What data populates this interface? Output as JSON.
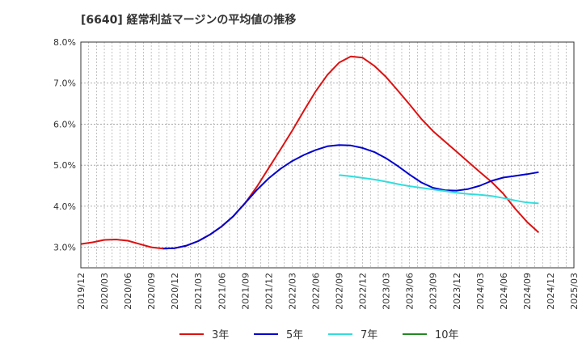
{
  "chart_data": {
    "type": "line",
    "title": "[6640]  経常利益マージンの平均値の推移",
    "xlabel": "",
    "ylabel": "",
    "ylim": [
      2.5,
      8.0
    ],
    "y_ticks": [
      "3.0%",
      "4.0%",
      "5.0%",
      "6.0%",
      "7.0%",
      "8.0%"
    ],
    "y_tick_values": [
      3.0,
      4.0,
      5.0,
      6.0,
      7.0,
      8.0
    ],
    "x_ticks": [
      "2019/12",
      "2020/03",
      "2020/06",
      "2020/09",
      "2020/12",
      "2021/03",
      "2021/06",
      "2021/09",
      "2021/12",
      "2022/03",
      "2022/06",
      "2022/09",
      "2022/12",
      "2023/03",
      "2023/06",
      "2023/09",
      "2023/12",
      "2024/03",
      "2024/06",
      "2024/09",
      "2024/12",
      "2025/03"
    ],
    "grid": true,
    "legend_position": "bottom",
    "series": [
      {
        "name": "3年",
        "color": "#dd1111",
        "values": [
          3.08,
          3.12,
          3.18,
          3.19,
          3.16,
          3.08,
          3.0,
          2.97,
          2.98,
          3.04,
          3.15,
          3.31,
          3.51,
          3.76,
          4.08,
          4.48,
          4.93,
          5.38,
          5.84,
          6.33,
          6.8,
          7.2,
          7.5,
          7.65,
          7.62,
          7.42,
          7.15,
          6.82,
          6.48,
          6.13,
          5.83,
          5.58,
          5.33,
          5.08,
          4.83,
          4.59,
          4.3,
          3.94,
          3.62,
          3.36
        ]
      },
      {
        "name": "5年",
        "color": "#0000cc",
        "values": [
          null,
          null,
          null,
          null,
          null,
          null,
          null,
          2.97,
          2.98,
          3.04,
          3.15,
          3.31,
          3.51,
          3.76,
          4.08,
          4.4,
          4.68,
          4.91,
          5.1,
          5.25,
          5.37,
          5.46,
          5.49,
          5.48,
          5.42,
          5.32,
          5.17,
          4.98,
          4.77,
          4.58,
          4.45,
          4.39,
          4.38,
          4.42,
          4.5,
          4.62,
          4.7,
          4.74,
          4.78,
          4.83
        ]
      },
      {
        "name": "7年",
        "color": "#33dddd",
        "values": [
          null,
          null,
          null,
          null,
          null,
          null,
          null,
          null,
          null,
          null,
          null,
          null,
          null,
          null,
          null,
          null,
          null,
          null,
          null,
          null,
          null,
          null,
          4.76,
          4.73,
          4.69,
          4.65,
          4.6,
          4.54,
          4.49,
          4.45,
          4.41,
          4.37,
          4.33,
          4.3,
          4.28,
          4.25,
          4.2,
          4.14,
          4.09,
          4.07
        ]
      },
      {
        "name": "10年",
        "color": "#228822",
        "values": []
      }
    ]
  }
}
